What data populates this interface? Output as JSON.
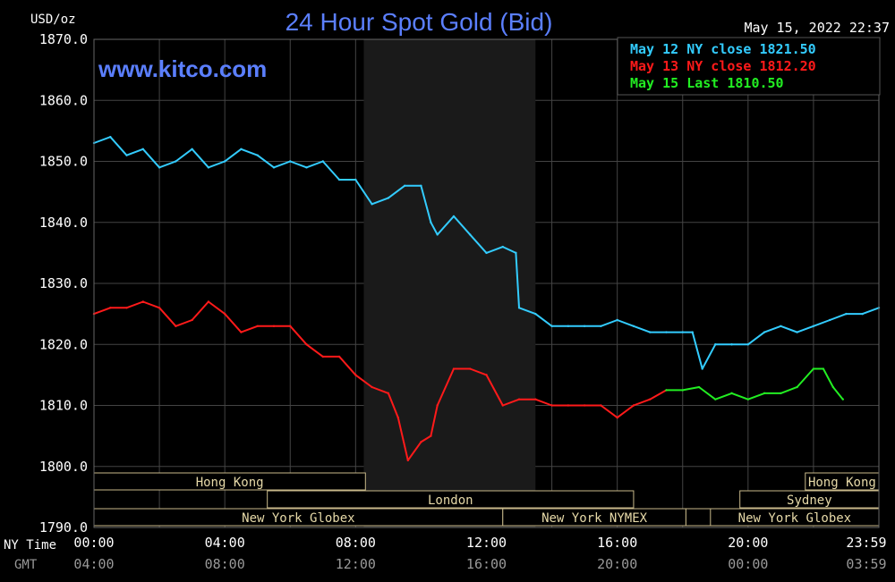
{
  "chart_data": {
    "type": "line",
    "title": "24 Hour Spot Gold (Bid)",
    "unit_label": "USD/oz",
    "watermark": "www.kitco.com",
    "timestamp": "May 15, 2022 22:37",
    "ylim": [
      1790,
      1870
    ],
    "y_ticks": [
      "1870.0",
      "1860.0",
      "1850.0",
      "1840.0",
      "1830.0",
      "1820.0",
      "1810.0",
      "1800.0",
      "1790.0"
    ],
    "xlim": [
      0,
      24
    ],
    "x_ticks_ny": [
      "00:00",
      "04:00",
      "08:00",
      "12:00",
      "16:00",
      "20:00",
      "23:59"
    ],
    "x_ticks_gmt": [
      "04:00",
      "08:00",
      "12:00",
      "16:00",
      "20:00",
      "00:00",
      "03:59"
    ],
    "row_label_ny": "NY Time",
    "row_label_gmt": "GMT",
    "grid": true,
    "legend_position": "top-right",
    "legend": [
      {
        "label": "May 12 NY close 1821.50",
        "color": "#33ccff"
      },
      {
        "label": "May 13 NY close 1812.20",
        "color": "#ff1a1a"
      },
      {
        "label": "May 15 Last 1810.50",
        "color": "#22ee22"
      }
    ],
    "shaded_interval": [
      8.25,
      13.5
    ],
    "series": [
      {
        "name": "May 12",
        "color": "#33ccff",
        "x": [
          0,
          0.5,
          1,
          1.5,
          2,
          2.5,
          3,
          3.5,
          4,
          4.5,
          5,
          5.5,
          6,
          6.5,
          7,
          7.5,
          8,
          8.5,
          9,
          9.5,
          10,
          10.3,
          10.5,
          11,
          11.5,
          12,
          12.5,
          12.9,
          13,
          13.5,
          14,
          14.5,
          15,
          15.5,
          16,
          16.5,
          17,
          17.5,
          18,
          18.3,
          18.6,
          19,
          19.5,
          20,
          20.5,
          21,
          21.5,
          22,
          22.5,
          23,
          23.5,
          24
        ],
        "y": [
          1853,
          1854,
          1851,
          1852,
          1849,
          1850,
          1852,
          1849,
          1850,
          1852,
          1851,
          1849,
          1850,
          1849,
          1850,
          1847,
          1847,
          1843,
          1844,
          1846,
          1846,
          1840,
          1838,
          1841,
          1838,
          1835,
          1836,
          1835,
          1826,
          1825,
          1823,
          1823,
          1823,
          1823,
          1824,
          1823,
          1822,
          1822,
          1822,
          1822,
          1816,
          1820,
          1820,
          1820,
          1822,
          1823,
          1822,
          1823,
          1824,
          1825,
          1825,
          1826
        ]
      },
      {
        "name": "May 13",
        "color": "#ff1a1a",
        "x": [
          0,
          0.5,
          1,
          1.5,
          2,
          2.5,
          3,
          3.5,
          4,
          4.5,
          5,
          5.5,
          6,
          6.5,
          7,
          7.5,
          8,
          8.5,
          9,
          9.3,
          9.6,
          10,
          10.3,
          10.5,
          11,
          11.5,
          12,
          12.5,
          13,
          13.5,
          14,
          14.5,
          15,
          15.5,
          16,
          16.5,
          17,
          17.5
        ],
        "y": [
          1825,
          1826,
          1826,
          1827,
          1826,
          1823,
          1824,
          1827,
          1825,
          1822,
          1823,
          1823,
          1823,
          1820,
          1818,
          1818,
          1815,
          1813,
          1812,
          1808,
          1801,
          1804,
          1805,
          1810,
          1816,
          1816,
          1815,
          1810,
          1811,
          1811,
          1810,
          1810,
          1810,
          1810,
          1808,
          1810,
          1811,
          1812.5
        ]
      },
      {
        "name": "May 15",
        "color": "#22ee22",
        "x": [
          17.5,
          18,
          18.5,
          19,
          19.5,
          20,
          20.5,
          21,
          21.5,
          22,
          22.3,
          22.6,
          22.9
        ],
        "y": [
          1812.5,
          1812.5,
          1813,
          1811,
          1812,
          1811,
          1812,
          1812,
          1813,
          1816,
          1816,
          1813,
          1811
        ]
      }
    ],
    "sessions": [
      {
        "label": "Hong Kong",
        "start": 0,
        "end": 8.3,
        "row": 0
      },
      {
        "label": "London",
        "start": 5.3,
        "end": 16.5,
        "row": 1
      },
      {
        "label": "New York Globex",
        "start": 0,
        "end": 12.5,
        "row": 2
      },
      {
        "label": "New York NYMEX",
        "start": 12.5,
        "end": 18.1,
        "row": 2
      },
      {
        "label": "NY Globex",
        "start": 18.1,
        "end": 22.7,
        "row": 2
      },
      {
        "label": "Hong Kong",
        "start": 21.75,
        "end": 24,
        "row": 0
      },
      {
        "label": "Sydney",
        "start": 19.75,
        "end": 24,
        "row": 1
      },
      {
        "label": "New York Globex",
        "start": 18.85,
        "end": 24,
        "row": 2
      }
    ]
  }
}
